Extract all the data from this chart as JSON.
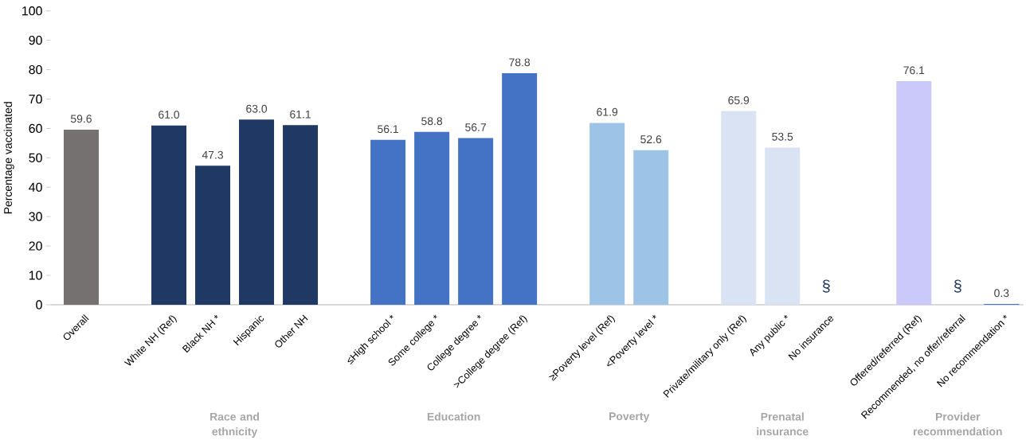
{
  "chart_data": {
    "type": "bar",
    "ylabel": "Percentage vaccinated",
    "categories": [
      "Overall",
      null,
      "White NH (Ref)",
      "Black NH *",
      "Hispanic",
      "Other NH",
      null,
      "≤High school *",
      "Some college *",
      "College degree *",
      ">College degree (Ref)",
      null,
      "≥Poverty level (Ref)",
      "<Poverty level *",
      null,
      "Private/military only (Ref)",
      "Any public *",
      "No insurance",
      null,
      "Offered/referred (Ref)",
      "Recommended, no offer/referral",
      "No recommendation *"
    ],
    "values": [
      59.6,
      null,
      61.0,
      47.3,
      63.0,
      61.1,
      null,
      56.1,
      58.8,
      56.7,
      78.8,
      null,
      61.9,
      52.6,
      null,
      65.9,
      53.5,
      null,
      null,
      76.1,
      null,
      0.3
    ],
    "value_labels": [
      "59.6",
      null,
      "61.0",
      "47.3",
      "63.0",
      "61.1",
      null,
      "56.1",
      "58.8",
      "56.7",
      "78.8",
      null,
      "61.9",
      "52.6",
      null,
      "65.9",
      "53.5",
      "§",
      null,
      "76.1",
      "§",
      "0.3"
    ],
    "colors": [
      "#767171",
      null,
      "#1f3864",
      "#1f3864",
      "#1f3864",
      "#1f3864",
      null,
      "#4472c4",
      "#4472c4",
      "#4472c4",
      "#4472c4",
      null,
      "#9dc3e6",
      "#9dc3e6",
      null,
      "#dae3f3",
      "#dae3f3",
      null,
      null,
      "#cbc8fa",
      null,
      "#4472c4"
    ],
    "ylim": [
      0,
      100
    ],
    "yticks": [
      0,
      10,
      20,
      30,
      40,
      50,
      60,
      70,
      80,
      90,
      100
    ],
    "annotations": [
      "Race and ethnicity",
      "Education",
      "Poverty",
      "Prenatal insurance",
      "Provider recommendation"
    ],
    "grid": false
  }
}
